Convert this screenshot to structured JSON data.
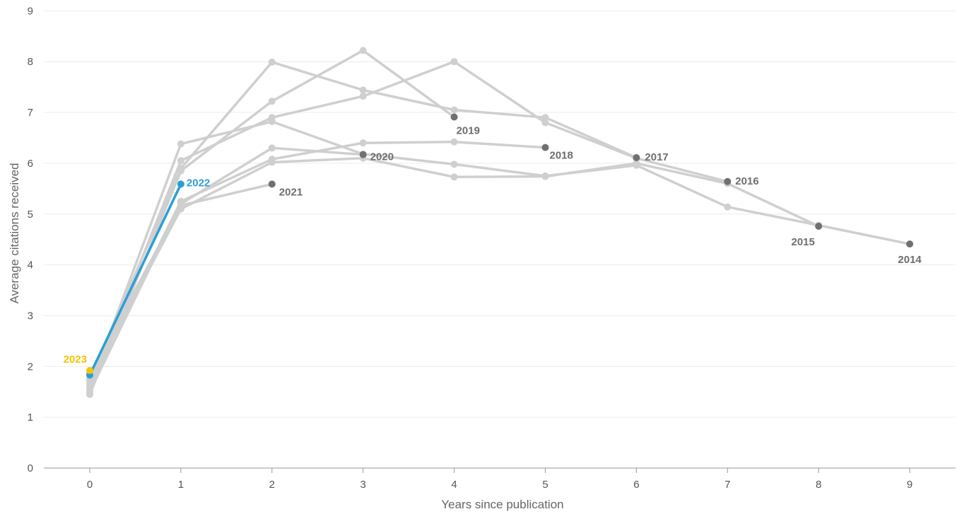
{
  "chart_data": {
    "type": "line",
    "xlabel": "Years since publication",
    "ylabel": "Average citations received",
    "xlim": [
      0,
      9
    ],
    "ylim": [
      0,
      9
    ],
    "x_ticks": [
      "0",
      "1",
      "2",
      "3",
      "4",
      "5",
      "6",
      "7",
      "8",
      "9"
    ],
    "y_ticks": [
      "0",
      "1",
      "2",
      "3",
      "4",
      "5",
      "6",
      "7",
      "8",
      "9"
    ],
    "grid": true,
    "legend": "none",
    "colors": {
      "background_line": "#cfcfcf",
      "end_dot": "#707070",
      "end_label": "#6e6e6e",
      "highlight_2022": "#2a9fd6",
      "highlight_2023": "#f2c500",
      "grid": "#ececec",
      "axis": "#999999"
    },
    "series": [
      {
        "name": "2014",
        "values": [
          1.6,
          6.38,
          6.82,
          6.18,
          5.98,
          5.75,
          5.96,
          5.14,
          4.78,
          4.41
        ]
      },
      {
        "name": "2015",
        "values": [
          1.7,
          5.1,
          6.02,
          6.1,
          5.73,
          5.74,
          6.0,
          5.6,
          4.76
        ]
      },
      {
        "name": "2016",
        "values": [
          1.55,
          6.05,
          6.9,
          7.32,
          8.0,
          6.8,
          6.1,
          5.64
        ]
      },
      {
        "name": "2017",
        "values": [
          1.75,
          5.9,
          7.99,
          7.44,
          7.05,
          6.9,
          6.11
        ]
      },
      {
        "name": "2018",
        "values": [
          1.65,
          5.25,
          6.08,
          6.4,
          6.42,
          6.31
        ]
      },
      {
        "name": "2019",
        "values": [
          1.45,
          5.85,
          7.22,
          8.22,
          6.91
        ]
      },
      {
        "name": "2020",
        "values": [
          1.5,
          5.2,
          6.3,
          6.17
        ]
      },
      {
        "name": "2021",
        "values": [
          1.85,
          5.17,
          5.59
        ]
      },
      {
        "name": "2022",
        "values": [
          1.83,
          5.59
        ]
      },
      {
        "name": "2023",
        "values": [
          1.92
        ]
      }
    ],
    "highlighted": [
      "2022",
      "2023"
    ]
  }
}
